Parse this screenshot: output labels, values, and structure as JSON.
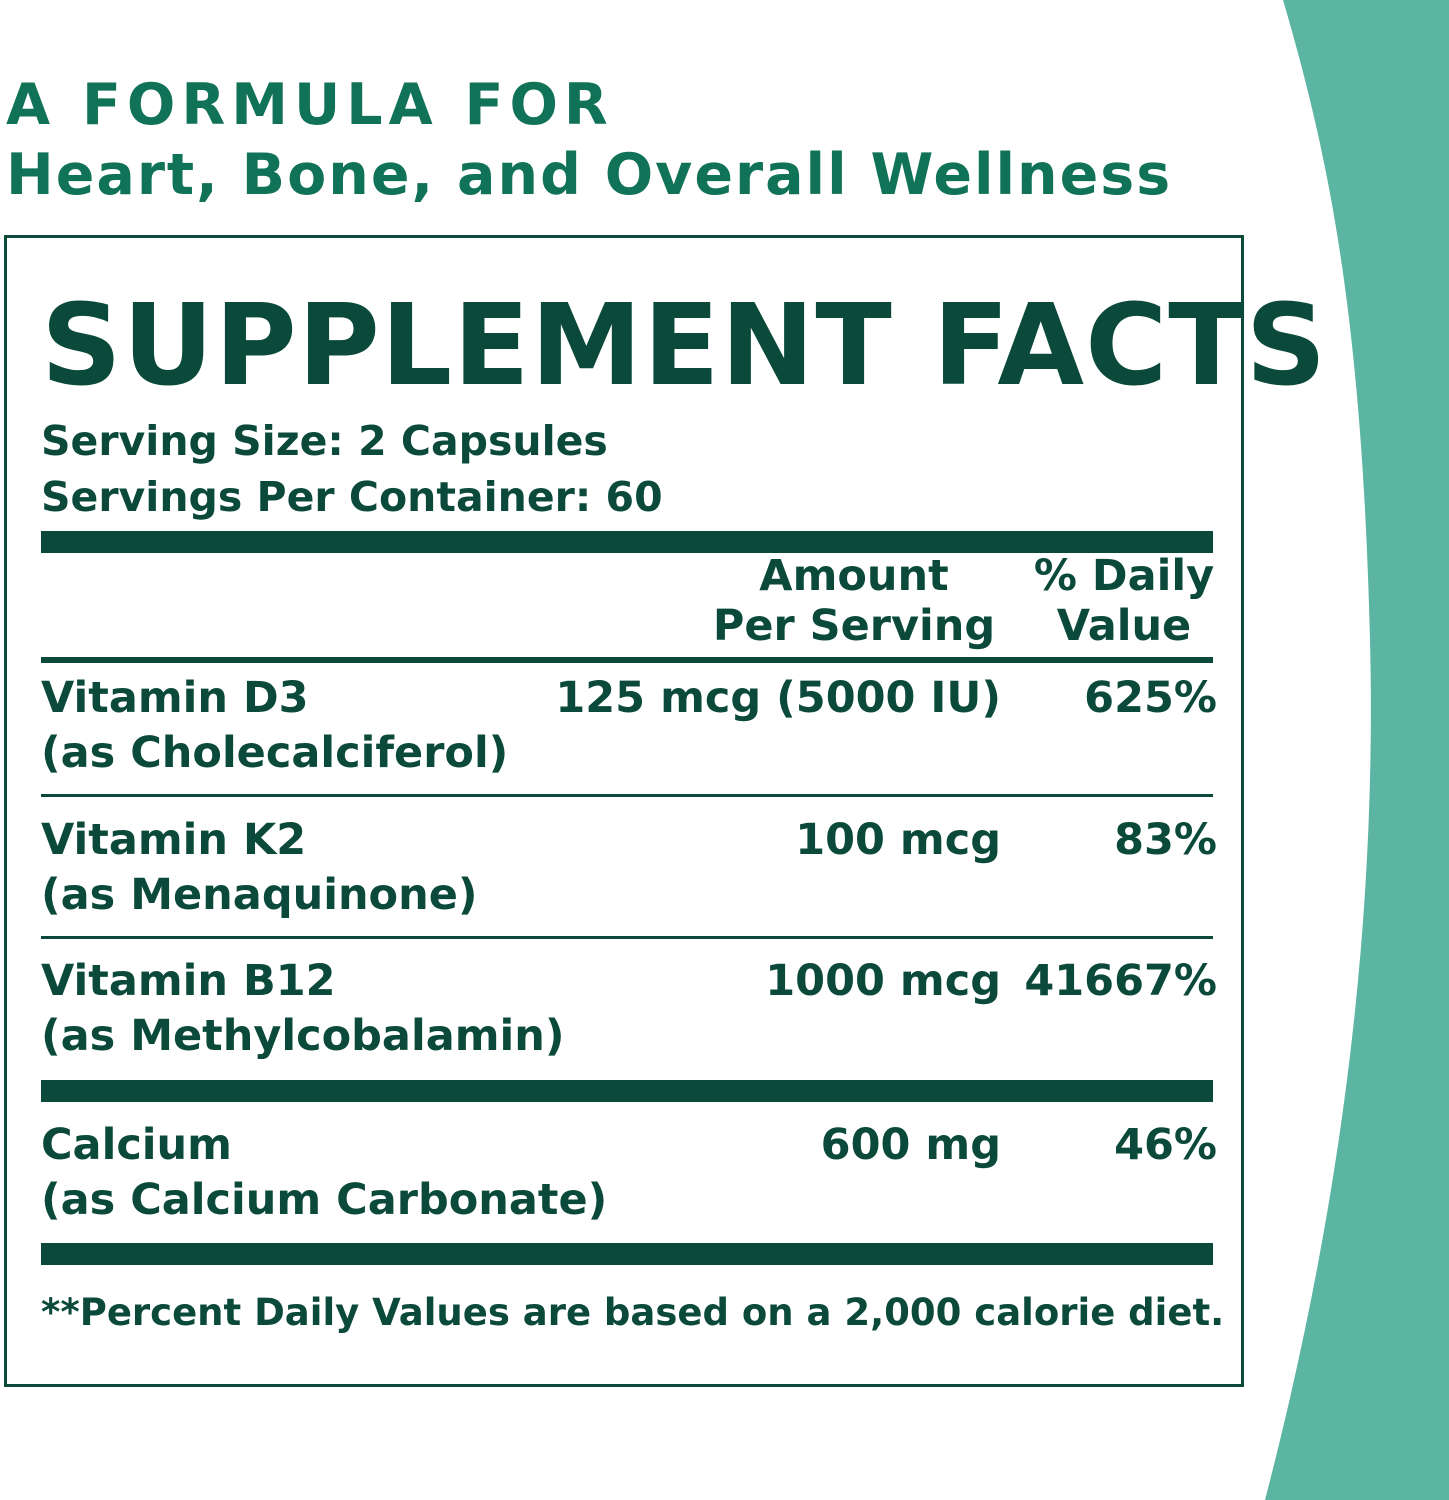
{
  "headline": {
    "line1": "A FORMULA FOR",
    "line2": "Heart, Bone, and Overall Wellness"
  },
  "facts": {
    "title": "SUPPLEMENT FACTS",
    "serving_size": "Serving Size: 2 Capsules",
    "servings_per_container": "Servings Per Container: 60",
    "col_amount_line1": "Amount",
    "col_amount_line2": "Per Serving",
    "col_dv_line1": "% Daily",
    "col_dv_line2": "Value",
    "rows": [
      {
        "name": "Vitamin D3",
        "form": "(as Cholecalciferol)",
        "amount": "125 mcg (5000 IU)",
        "dv": "625%"
      },
      {
        "name": "Vitamin K2",
        "form": "(as Menaquinone)",
        "amount": "100 mcg",
        "dv": "83%"
      },
      {
        "name": "Vitamin B12",
        "form": "(as Methylcobalamin)",
        "amount": "1000 mcg",
        "dv": "41667%"
      },
      {
        "name": "Calcium",
        "form": "(as Calcium Carbonate)",
        "amount": "600 mg",
        "dv": "46%"
      }
    ],
    "footnote": "**Percent Daily Values are based on a 2,000 calorie diet."
  },
  "colors": {
    "brand_green": "#107256",
    "ink": "#0b4a3a",
    "accent_teal": "#5bb5a2"
  }
}
